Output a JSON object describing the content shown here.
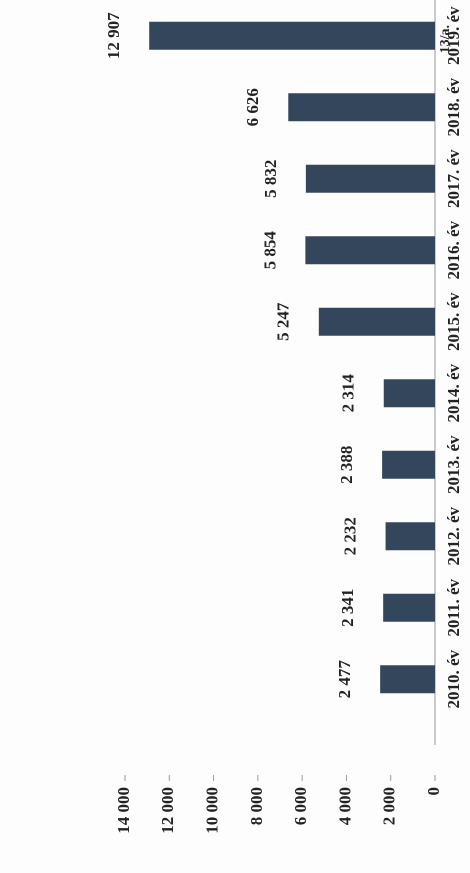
{
  "chart_data": {
    "type": "bar",
    "title": "13/a.",
    "categories": [
      "2010. év",
      "2011. év",
      "2012. év",
      "2013. év",
      "2014. év",
      "2015. év",
      "2016. év",
      "2017. év",
      "2018. év",
      "2019. év"
    ],
    "values": [
      2477,
      2341,
      2232,
      2388,
      2314,
      5247,
      5854,
      5832,
      6626,
      12907
    ],
    "value_labels": [
      "2 477",
      "2 341",
      "2 232",
      "2 388",
      "2 314",
      "5 247",
      "5 854",
      "5 832",
      "6 626",
      "12 907"
    ],
    "color": "#34465c",
    "ylim": [
      0,
      14000
    ],
    "yticks": [
      0,
      {
        "value": 2000,
        "label": "2 000"
      },
      {
        "value": 4000,
        "label": "4 000"
      },
      {
        "value": 6000,
        "label": "6 000"
      },
      {
        "value": 8000,
        "label": "8 000"
      },
      {
        "value": 10000,
        "label": "10 000"
      },
      {
        "value": 12000,
        "label": "12 000"
      },
      {
        "value": 14000,
        "label": "14 000"
      }
    ],
    "grid": false
  }
}
